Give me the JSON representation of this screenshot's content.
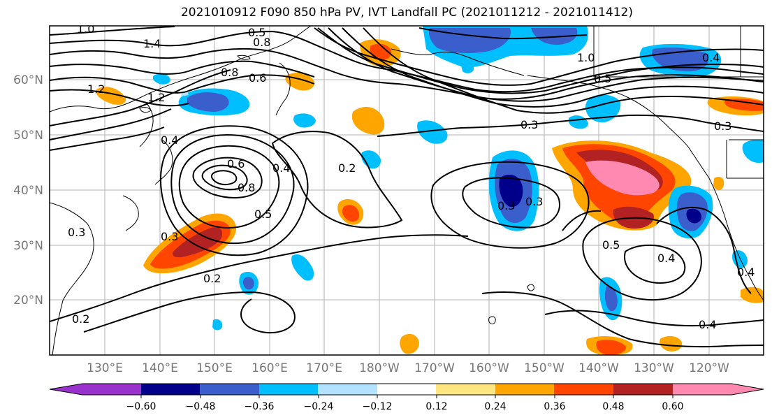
{
  "title": "2021010912 F090 850 hPa PV, IVT Landfall PC (2021011212 - 2021011412)",
  "lat_labels": [
    "60°N",
    "50°N",
    "40°N",
    "30°N",
    "20°N"
  ],
  "lon_labels": [
    "130°E",
    "140°E",
    "150°E",
    "160°E",
    "170°E",
    "180°W",
    "170°W",
    "160°W",
    "150°W",
    "140°W",
    "130°W",
    "120°W"
  ],
  "colorbar": {
    "colors": [
      "#9932cc",
      "#00008b",
      "#3a5fcd",
      "#00bfff",
      "#b2e2ff",
      "#ffffff",
      "#ffe680",
      "#ffa500",
      "#ff4500",
      "#b22222",
      "#ff89b0"
    ],
    "tick_labels": [
      "−0.60",
      "−0.48",
      "−0.36",
      "−0.24",
      "−0.12",
      "0.12",
      "0.24",
      "0.36",
      "0.48",
      "0.60"
    ]
  },
  "contour_labels": [
    "1.0",
    "1.4",
    "0.5",
    "0.8",
    "0.8",
    "0.6",
    "1.2",
    "1.2",
    "0.4",
    "0.6",
    "0.4",
    "0.8",
    "0.2",
    "0.5",
    "0.3",
    "0.3",
    "0.3",
    "0.2",
    "0.2",
    "0.3",
    "0.4",
    "0.5",
    "0.4",
    "0.4",
    "1.0",
    "0.3",
    "0.5",
    "0.3",
    "0.4"
  ]
}
